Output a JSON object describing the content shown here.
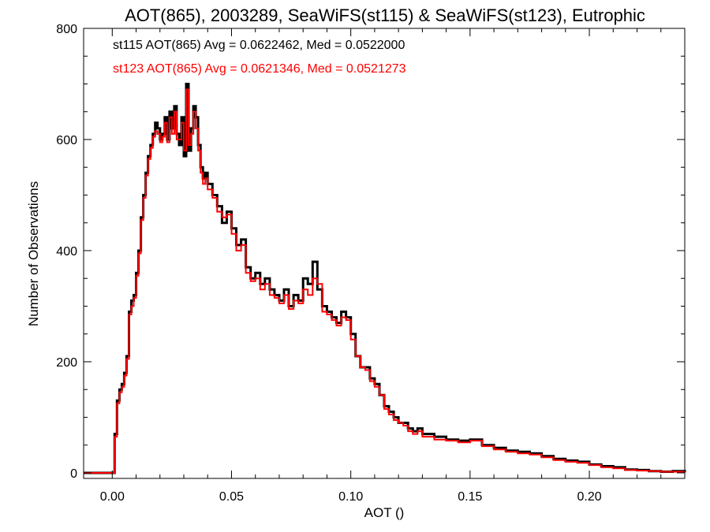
{
  "chart_data": {
    "type": "line",
    "title": "AOT(865), 2003289, SeaWiFS(st115) & SeaWiFS(st123), Eutrophic",
    "xlabel": "AOT ()",
    "ylabel": "Number of Observations",
    "xlim": [
      -0.012,
      0.24
    ],
    "ylim": [
      -10,
      800
    ],
    "xticks": [
      0.0,
      0.05,
      0.1,
      0.15,
      0.2
    ],
    "xtick_labels": [
      "0.00",
      "0.05",
      "0.10",
      "0.15",
      "0.20"
    ],
    "yticks": [
      0,
      200,
      400,
      600,
      800
    ],
    "ytick_labels": [
      "0",
      "200",
      "400",
      "600",
      "800"
    ],
    "grid": false,
    "annotations": [
      {
        "text": "st115 AOT(865) Avg = 0.0622462, Med = 0.0522000",
        "color": "#000000"
      },
      {
        "text": "st123 AOT(865) Avg = 0.0621346, Med = 0.0521273",
        "color": "#ff0000"
      }
    ],
    "series": [
      {
        "name": "st115",
        "color": "#000000",
        "x": [
          -0.012,
          0.0,
          0.001,
          0.002,
          0.003,
          0.004,
          0.005,
          0.006,
          0.007,
          0.008,
          0.009,
          0.01,
          0.011,
          0.012,
          0.013,
          0.014,
          0.015,
          0.016,
          0.017,
          0.018,
          0.019,
          0.02,
          0.021,
          0.022,
          0.023,
          0.024,
          0.025,
          0.026,
          0.027,
          0.028,
          0.029,
          0.03,
          0.031,
          0.032,
          0.033,
          0.034,
          0.035,
          0.036,
          0.037,
          0.038,
          0.039,
          0.04,
          0.042,
          0.044,
          0.046,
          0.048,
          0.05,
          0.052,
          0.054,
          0.056,
          0.058,
          0.06,
          0.062,
          0.064,
          0.066,
          0.068,
          0.07,
          0.072,
          0.074,
          0.076,
          0.078,
          0.08,
          0.082,
          0.084,
          0.086,
          0.088,
          0.09,
          0.092,
          0.094,
          0.096,
          0.098,
          0.1,
          0.102,
          0.104,
          0.106,
          0.108,
          0.11,
          0.112,
          0.114,
          0.116,
          0.118,
          0.12,
          0.122,
          0.124,
          0.126,
          0.128,
          0.13,
          0.135,
          0.14,
          0.145,
          0.15,
          0.155,
          0.16,
          0.165,
          0.17,
          0.175,
          0.18,
          0.185,
          0.19,
          0.195,
          0.2,
          0.205,
          0.21,
          0.215,
          0.22,
          0.225,
          0.23,
          0.235,
          0.24
        ],
        "y": [
          0,
          0,
          70,
          130,
          150,
          160,
          180,
          210,
          290,
          310,
          320,
          360,
          400,
          460,
          500,
          540,
          570,
          590,
          610,
          630,
          620,
          600,
          610,
          640,
          600,
          650,
          620,
          660,
          610,
          590,
          640,
          570,
          700,
          580,
          620,
          660,
          640,
          590,
          550,
          530,
          540,
          520,
          500,
          480,
          450,
          470,
          440,
          410,
          420,
          370,
          350,
          360,
          340,
          350,
          330,
          320,
          310,
          330,
          300,
          320,
          310,
          350,
          340,
          380,
          330,
          300,
          290,
          280,
          270,
          290,
          280,
          250,
          210,
          190,
          190,
          170,
          160,
          140,
          120,
          110,
          100,
          90,
          90,
          80,
          75,
          80,
          70,
          65,
          60,
          58,
          60,
          50,
          45,
          40,
          38,
          35,
          30,
          25,
          22,
          20,
          15,
          12,
          10,
          6,
          5,
          3,
          2,
          3,
          1
        ]
      },
      {
        "name": "st123",
        "color": "#ff0000",
        "x": [
          -0.012,
          0.0,
          0.001,
          0.002,
          0.003,
          0.004,
          0.005,
          0.006,
          0.007,
          0.008,
          0.009,
          0.01,
          0.011,
          0.012,
          0.013,
          0.014,
          0.015,
          0.016,
          0.017,
          0.018,
          0.019,
          0.02,
          0.021,
          0.022,
          0.023,
          0.024,
          0.025,
          0.026,
          0.027,
          0.028,
          0.029,
          0.03,
          0.031,
          0.032,
          0.033,
          0.034,
          0.035,
          0.036,
          0.037,
          0.038,
          0.039,
          0.04,
          0.042,
          0.044,
          0.046,
          0.048,
          0.05,
          0.052,
          0.054,
          0.056,
          0.058,
          0.06,
          0.062,
          0.064,
          0.066,
          0.068,
          0.07,
          0.072,
          0.074,
          0.076,
          0.078,
          0.08,
          0.082,
          0.084,
          0.086,
          0.088,
          0.09,
          0.092,
          0.094,
          0.096,
          0.098,
          0.1,
          0.102,
          0.104,
          0.106,
          0.108,
          0.11,
          0.112,
          0.114,
          0.116,
          0.118,
          0.12,
          0.122,
          0.124,
          0.126,
          0.128,
          0.13,
          0.135,
          0.14,
          0.145,
          0.15,
          0.155,
          0.16,
          0.165,
          0.17,
          0.175,
          0.18,
          0.185,
          0.19,
          0.195,
          0.2,
          0.205,
          0.21,
          0.215,
          0.22,
          0.225,
          0.23,
          0.235,
          0.24
        ],
        "y": [
          0,
          0,
          65,
          125,
          145,
          155,
          175,
          205,
          285,
          300,
          315,
          355,
          395,
          455,
          495,
          535,
          565,
          585,
          605,
          615,
          610,
          595,
          605,
          630,
          595,
          640,
          610,
          650,
          600,
          600,
          630,
          580,
          690,
          590,
          610,
          650,
          620,
          580,
          540,
          520,
          530,
          510,
          495,
          470,
          460,
          465,
          430,
          400,
          410,
          360,
          345,
          350,
          330,
          340,
          320,
          315,
          305,
          320,
          295,
          310,
          305,
          330,
          320,
          350,
          340,
          290,
          285,
          275,
          265,
          280,
          275,
          240,
          210,
          190,
          185,
          165,
          155,
          140,
          115,
          105,
          95,
          90,
          85,
          75,
          70,
          75,
          65,
          60,
          58,
          55,
          58,
          48,
          42,
          38,
          35,
          33,
          28,
          23,
          20,
          18,
          14,
          10,
          8,
          5,
          4,
          3,
          2,
          2,
          1
        ]
      }
    ]
  }
}
